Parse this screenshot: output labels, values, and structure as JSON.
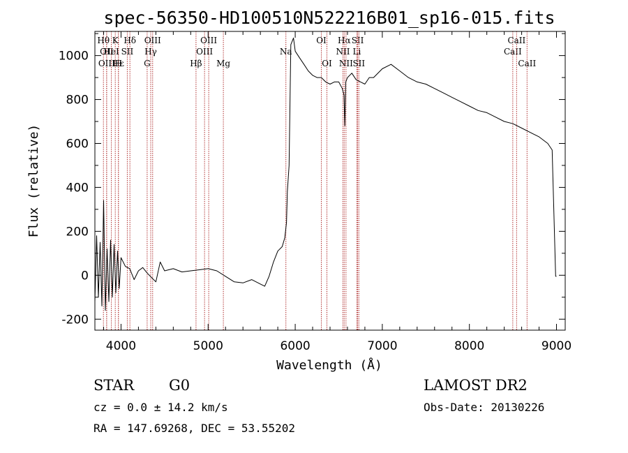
{
  "chart_data": {
    "type": "line",
    "title": "spec-56350-HD100510N522216B01_sp16-015.fits",
    "xlabel": "Wavelength (Å)",
    "ylabel": "Flux (relative)",
    "xlim": [
      3700,
      9100
    ],
    "ylim": [
      -250,
      1110
    ],
    "x_ticks": [
      4000,
      5000,
      6000,
      7000,
      8000,
      9000
    ],
    "y_ticks": [
      -200,
      0,
      200,
      400,
      600,
      800,
      1000
    ],
    "grid": false,
    "series": [
      {
        "x": [
          3700,
          3720,
          3740,
          3760,
          3780,
          3800,
          3820,
          3840,
          3860,
          3880,
          3900,
          3920,
          3940,
          3960,
          3980,
          4000,
          4050,
          4100,
          4150,
          4200,
          4250,
          4300,
          4350,
          4400,
          4450,
          4500,
          4600,
          4700,
          4800,
          4900,
          5000,
          5100,
          5200,
          5300,
          5400,
          5500,
          5600,
          5650,
          5700,
          5750,
          5800,
          5850,
          5880,
          5900,
          5910,
          5930,
          5950,
          5980,
          6000,
          6050,
          6100,
          6150,
          6200,
          6250,
          6300,
          6350,
          6400,
          6450,
          6500,
          6540,
          6560,
          6570,
          6580,
          6600,
          6650,
          6700,
          6750,
          6800,
          6850,
          6900,
          7000,
          7100,
          7200,
          7300,
          7400,
          7500,
          7600,
          7700,
          7800,
          7900,
          8000,
          8100,
          8200,
          8300,
          8400,
          8500,
          8600,
          8700,
          8800,
          8900,
          8950,
          8990,
          9000
        ],
        "y": [
          -120,
          180,
          -100,
          150,
          -140,
          340,
          -160,
          120,
          -120,
          160,
          -100,
          140,
          -80,
          110,
          -60,
          80,
          40,
          30,
          -20,
          20,
          35,
          10,
          -10,
          -30,
          60,
          20,
          30,
          15,
          20,
          25,
          30,
          20,
          -5,
          -30,
          -35,
          -20,
          -40,
          -50,
          -5,
          60,
          110,
          130,
          170,
          240,
          380,
          500,
          1050,
          1080,
          1020,
          990,
          960,
          930,
          910,
          900,
          900,
          880,
          870,
          880,
          880,
          850,
          820,
          680,
          880,
          900,
          920,
          890,
          880,
          870,
          900,
          900,
          940,
          960,
          930,
          900,
          880,
          870,
          850,
          830,
          810,
          790,
          770,
          750,
          740,
          720,
          700,
          690,
          670,
          650,
          630,
          600,
          570,
          -5,
          -5
        ]
      }
    ],
    "line_markers": [
      {
        "x": 3798,
        "label": "Hθ",
        "row": 0
      },
      {
        "x": 3835,
        "label": "OII",
        "row": 1
      },
      {
        "x": 3835,
        "label": "OIII",
        "row": 2
      },
      {
        "x": 3889,
        "label": "HeI",
        "row": 1
      },
      {
        "x": 3934,
        "label": "K",
        "row": 0
      },
      {
        "x": 3970,
        "label": "Hε",
        "row": 2
      },
      {
        "x": 3970,
        "label": "H",
        "row": 2
      },
      {
        "x": 4072,
        "label": "SII",
        "row": 1
      },
      {
        "x": 4102,
        "label": "Hδ",
        "row": 0
      },
      {
        "x": 4300,
        "label": "G",
        "row": 2
      },
      {
        "x": 4341,
        "label": "Hγ",
        "row": 1
      },
      {
        "x": 4363,
        "label": "OIII",
        "row": 0
      },
      {
        "x": 4861,
        "label": "Hβ",
        "row": 2
      },
      {
        "x": 4959,
        "label": "OIII",
        "row": 1
      },
      {
        "x": 5007,
        "label": "OIII",
        "row": 0
      },
      {
        "x": 5175,
        "label": "Mg",
        "row": 2
      },
      {
        "x": 5893,
        "label": "Na",
        "row": 1
      },
      {
        "x": 6300,
        "label": "OI",
        "row": 0
      },
      {
        "x": 6364,
        "label": "OI",
        "row": 2
      },
      {
        "x": 6548,
        "label": "NII",
        "row": 1
      },
      {
        "x": 6563,
        "label": "Hα",
        "row": 0
      },
      {
        "x": 6583,
        "label": "NII",
        "row": 2
      },
      {
        "x": 6708,
        "label": "Li",
        "row": 1
      },
      {
        "x": 6717,
        "label": "SII",
        "row": 0
      },
      {
        "x": 6731,
        "label": "SII",
        "row": 2
      },
      {
        "x": 8498,
        "label": "CaII",
        "row": 1
      },
      {
        "x": 8542,
        "label": "CaII",
        "row": 0
      },
      {
        "x": 8662,
        "label": "CaII",
        "row": 2
      }
    ]
  },
  "info": {
    "object_class": "STAR",
    "subclass": "G0",
    "survey": "LAMOST DR2",
    "velocity": "cz = 0.0 ± 14.2 km/s",
    "obs_date": "Obs-Date: 20130226",
    "coords": "RA = 147.69268, DEC =  53.55202"
  },
  "colors": {
    "axis": "#000000",
    "spectrum": "#000000",
    "marker_line": "#b03030"
  }
}
